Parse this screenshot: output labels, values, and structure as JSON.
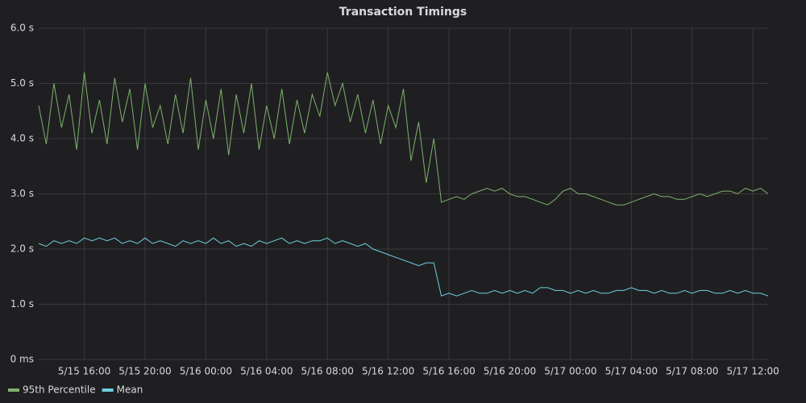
{
  "chart_data": {
    "type": "line",
    "title": "Transaction Timings",
    "x": [
      "5/15 13:00",
      "5/15 13:30",
      "5/15 14:00",
      "5/15 14:30",
      "5/15 15:00",
      "5/15 15:30",
      "5/15 16:00",
      "5/15 16:30",
      "5/15 17:00",
      "5/15 17:30",
      "5/15 18:00",
      "5/15 18:30",
      "5/15 19:00",
      "5/15 19:30",
      "5/15 20:00",
      "5/15 20:30",
      "5/15 21:00",
      "5/15 21:30",
      "5/15 22:00",
      "5/15 22:30",
      "5/15 23:00",
      "5/15 23:30",
      "5/16 00:00",
      "5/16 00:30",
      "5/16 01:00",
      "5/16 01:30",
      "5/16 02:00",
      "5/16 02:30",
      "5/16 03:00",
      "5/16 03:30",
      "5/16 04:00",
      "5/16 04:30",
      "5/16 05:00",
      "5/16 05:30",
      "5/16 06:00",
      "5/16 06:30",
      "5/16 07:00",
      "5/16 07:30",
      "5/16 08:00",
      "5/16 08:30",
      "5/16 09:00",
      "5/16 09:30",
      "5/16 10:00",
      "5/16 10:30",
      "5/16 11:00",
      "5/16 11:30",
      "5/16 12:00",
      "5/16 12:30",
      "5/16 13:00",
      "5/16 13:30",
      "5/16 14:00",
      "5/16 14:30",
      "5/16 15:00",
      "5/16 15:30",
      "5/16 16:00",
      "5/16 16:30",
      "5/16 17:00",
      "5/16 17:30",
      "5/16 18:00",
      "5/16 18:30",
      "5/16 19:00",
      "5/16 19:30",
      "5/16 20:00",
      "5/16 20:30",
      "5/16 21:00",
      "5/16 21:30",
      "5/16 22:00",
      "5/16 22:30",
      "5/16 23:00",
      "5/16 23:30",
      "5/17 00:00",
      "5/17 00:30",
      "5/17 01:00",
      "5/17 01:30",
      "5/17 02:00",
      "5/17 02:30",
      "5/17 03:00",
      "5/17 03:30",
      "5/17 04:00",
      "5/17 04:30",
      "5/17 05:00",
      "5/17 05:30",
      "5/17 06:00",
      "5/17 06:30",
      "5/17 07:00",
      "5/17 07:30",
      "5/17 08:00",
      "5/17 08:30",
      "5/17 09:00",
      "5/17 09:30",
      "5/17 10:00",
      "5/17 10:30",
      "5/17 11:00",
      "5/17 11:30",
      "5/17 12:00",
      "5/17 12:30",
      "5/17 13:00"
    ],
    "series": [
      {
        "name": "95th Percentile",
        "color": "#7eb26d",
        "values": [
          4.6,
          3.9,
          5.0,
          4.2,
          4.8,
          3.8,
          5.2,
          4.1,
          4.7,
          3.9,
          5.1,
          4.3,
          4.9,
          3.8,
          5.0,
          4.2,
          4.6,
          3.9,
          4.8,
          4.1,
          5.1,
          3.8,
          4.7,
          4.0,
          4.9,
          3.7,
          4.8,
          4.1,
          5.0,
          3.8,
          4.6,
          4.0,
          4.9,
          3.9,
          4.7,
          4.1,
          4.8,
          4.4,
          5.2,
          4.6,
          5.0,
          4.3,
          4.8,
          4.1,
          4.7,
          3.9,
          4.6,
          4.2,
          4.9,
          3.6,
          4.3,
          3.2,
          4.0,
          2.85,
          2.9,
          2.95,
          2.9,
          3.0,
          3.05,
          3.1,
          3.05,
          3.1,
          3.0,
          2.95,
          2.95,
          2.9,
          2.85,
          2.8,
          2.9,
          3.05,
          3.1,
          3.0,
          3.0,
          2.95,
          2.9,
          2.85,
          2.8,
          2.8,
          2.85,
          2.9,
          2.95,
          3.0,
          2.95,
          2.95,
          2.9,
          2.9,
          2.95,
          3.0,
          2.95,
          3.0,
          3.05,
          3.05,
          3.0,
          3.1,
          3.05,
          3.1,
          3.0
        ]
      },
      {
        "name": "Mean",
        "color": "#6ed0e0",
        "values": [
          2.1,
          2.05,
          2.15,
          2.1,
          2.15,
          2.1,
          2.2,
          2.15,
          2.2,
          2.15,
          2.2,
          2.1,
          2.15,
          2.1,
          2.2,
          2.1,
          2.15,
          2.1,
          2.05,
          2.15,
          2.1,
          2.15,
          2.1,
          2.2,
          2.1,
          2.15,
          2.05,
          2.1,
          2.05,
          2.15,
          2.1,
          2.15,
          2.2,
          2.1,
          2.15,
          2.1,
          2.15,
          2.15,
          2.2,
          2.1,
          2.15,
          2.1,
          2.05,
          2.1,
          2.0,
          1.95,
          1.9,
          1.85,
          1.8,
          1.75,
          1.7,
          1.75,
          1.75,
          1.15,
          1.2,
          1.15,
          1.2,
          1.25,
          1.2,
          1.2,
          1.25,
          1.2,
          1.25,
          1.2,
          1.25,
          1.2,
          1.3,
          1.3,
          1.25,
          1.25,
          1.2,
          1.25,
          1.2,
          1.25,
          1.2,
          1.2,
          1.25,
          1.25,
          1.3,
          1.25,
          1.25,
          1.2,
          1.25,
          1.2,
          1.2,
          1.25,
          1.2,
          1.25,
          1.25,
          1.2,
          1.2,
          1.25,
          1.2,
          1.25,
          1.2,
          1.2,
          1.15
        ]
      }
    ],
    "xlim": [
      "5/15 13:00",
      "5/17 13:00"
    ],
    "xticks": [
      "5/15 16:00",
      "5/15 20:00",
      "5/16 00:00",
      "5/16 04:00",
      "5/16 08:00",
      "5/16 12:00",
      "5/16 16:00",
      "5/16 20:00",
      "5/17 00:00",
      "5/17 04:00",
      "5/17 08:00",
      "5/17 12:00"
    ],
    "ylim": [
      0,
      6
    ],
    "yticks": [
      {
        "value": 0,
        "label": "0 ms"
      },
      {
        "value": 1,
        "label": "1.0 s"
      },
      {
        "value": 2,
        "label": "2.0 s"
      },
      {
        "value": 3,
        "label": "3.0 s"
      },
      {
        "value": 4,
        "label": "4.0 s"
      },
      {
        "value": 5,
        "label": "5.0 s"
      },
      {
        "value": 6,
        "label": "6.0 s"
      }
    ],
    "grid": true,
    "legend": "bottom-left"
  }
}
